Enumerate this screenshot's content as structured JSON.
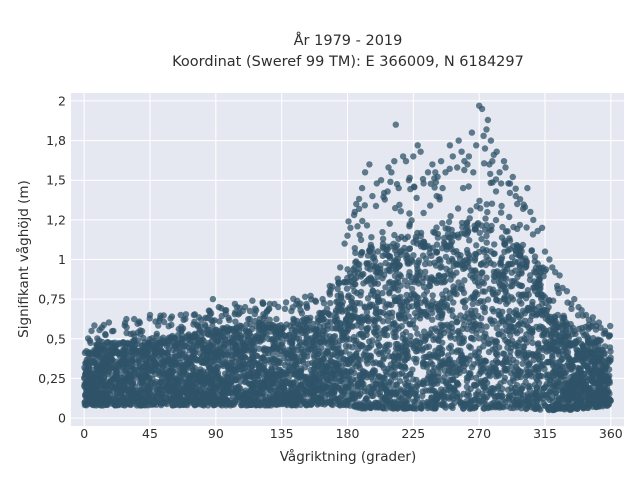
{
  "chart_data": {
    "type": "scatter",
    "title": [
      "År 1979 - 2019",
      "Koordinat (Sweref 99 TM): E 366009, N 6184297"
    ],
    "xlabel": "Vågriktning (grader)",
    "ylabel": "Signifikant våghöjd (m)",
    "xlim": [
      -9,
      369
    ],
    "ylim": [
      -0.05,
      2.05
    ],
    "xticks": [
      0,
      45,
      90,
      135,
      180,
      225,
      270,
      315,
      360
    ],
    "xtick_labels": [
      "0",
      "45",
      "90",
      "135",
      "180",
      "225",
      "270",
      "315",
      "360"
    ],
    "yticks": [
      0,
      0.25,
      0.5,
      0.75,
      1,
      1.25,
      1.5,
      1.75,
      2
    ],
    "ytick_labels": [
      "0",
      "0,25",
      "0,5",
      "0,75",
      "1",
      "1,2",
      "1,5",
      "1,8",
      "2"
    ],
    "grid": true,
    "marker_color": "#2f5368",
    "background_color": "#e5e8f0",
    "envelope": {
      "x": [
        0,
        10,
        20,
        30,
        40,
        50,
        60,
        70,
        80,
        90,
        100,
        110,
        120,
        130,
        140,
        150,
        160,
        170,
        175,
        180,
        185,
        190,
        200,
        210,
        220,
        230,
        240,
        250,
        260,
        270,
        280,
        290,
        300,
        310,
        320,
        330,
        340,
        350,
        360
      ],
      "y_min": [
        0.08,
        0.08,
        0.08,
        0.08,
        0.08,
        0.08,
        0.08,
        0.08,
        0.08,
        0.08,
        0.08,
        0.08,
        0.08,
        0.08,
        0.08,
        0.08,
        0.08,
        0.08,
        0.08,
        0.07,
        0.07,
        0.06,
        0.06,
        0.06,
        0.06,
        0.06,
        0.06,
        0.06,
        0.06,
        0.06,
        0.06,
        0.06,
        0.06,
        0.05,
        0.05,
        0.05,
        0.06,
        0.07,
        0.08
      ],
      "y_max": [
        0.42,
        0.48,
        0.48,
        0.5,
        0.5,
        0.52,
        0.52,
        0.53,
        0.55,
        0.56,
        0.58,
        0.58,
        0.6,
        0.6,
        0.62,
        0.64,
        0.66,
        0.72,
        0.8,
        0.88,
        0.98,
        1.05,
        1.1,
        1.12,
        1.15,
        1.18,
        1.2,
        1.22,
        1.25,
        1.28,
        1.25,
        1.18,
        1.05,
        0.9,
        0.75,
        0.62,
        0.55,
        0.5,
        0.45
      ]
    },
    "outliers": [
      [
        5,
        0.55
      ],
      [
        12,
        0.57
      ],
      [
        20,
        0.55
      ],
      [
        28,
        0.6
      ],
      [
        38,
        0.6
      ],
      [
        45,
        0.65
      ],
      [
        52,
        0.63
      ],
      [
        60,
        0.64
      ],
      [
        68,
        0.62
      ],
      [
        75,
        0.65
      ],
      [
        80,
        0.62
      ],
      [
        88,
        0.75
      ],
      [
        92,
        0.7
      ],
      [
        97,
        0.68
      ],
      [
        103,
        0.72
      ],
      [
        110,
        0.7
      ],
      [
        115,
        0.74
      ],
      [
        122,
        0.73
      ],
      [
        130,
        0.72
      ],
      [
        138,
        0.73
      ],
      [
        145,
        0.72
      ],
      [
        152,
        0.72
      ],
      [
        158,
        0.74
      ],
      [
        163,
        0.75
      ],
      [
        168,
        0.78
      ],
      [
        175,
        0.95
      ],
      [
        178,
        1.1
      ],
      [
        180,
        1.15
      ],
      [
        182,
        1.2
      ],
      [
        185,
        1.3
      ],
      [
        186,
        1.35
      ],
      [
        188,
        1.32
      ],
      [
        190,
        1.45
      ],
      [
        192,
        1.55
      ],
      [
        195,
        1.6
      ],
      [
        197,
        1.4
      ],
      [
        200,
        1.48
      ],
      [
        203,
        1.5
      ],
      [
        205,
        1.42
      ],
      [
        208,
        1.58
      ],
      [
        210,
        1.55
      ],
      [
        212,
        1.62
      ],
      [
        213,
        1.85
      ],
      [
        215,
        1.45
      ],
      [
        218,
        1.65
      ],
      [
        220,
        1.62
      ],
      [
        222,
        1.5
      ],
      [
        225,
        1.65
      ],
      [
        228,
        1.72
      ],
      [
        230,
        1.68
      ],
      [
        232,
        1.48
      ],
      [
        235,
        1.55
      ],
      [
        238,
        1.6
      ],
      [
        240,
        1.55
      ],
      [
        241,
        1.4
      ],
      [
        244,
        1.62
      ],
      [
        245,
        1.45
      ],
      [
        247,
        1.55
      ],
      [
        250,
        1.72
      ],
      [
        252,
        1.65
      ],
      [
        255,
        1.58
      ],
      [
        256,
        1.75
      ],
      [
        258,
        1.68
      ],
      [
        259,
        1.45
      ],
      [
        262,
        1.6
      ],
      [
        263,
        1.65
      ],
      [
        265,
        1.8
      ],
      [
        266,
        1.55
      ],
      [
        268,
        1.72
      ],
      [
        270,
        1.97
      ],
      [
        272,
        1.95
      ],
      [
        273,
        1.78
      ],
      [
        274,
        1.7
      ],
      [
        275,
        1.82
      ],
      [
        276,
        1.88
      ],
      [
        277,
        1.6
      ],
      [
        278,
        1.75
      ],
      [
        279,
        1.62
      ],
      [
        280,
        1.66
      ],
      [
        282,
        1.68
      ],
      [
        284,
        1.55
      ],
      [
        285,
        1.48
      ],
      [
        287,
        1.62
      ],
      [
        288,
        1.58
      ],
      [
        290,
        1.48
      ],
      [
        291,
        1.42
      ],
      [
        293,
        1.52
      ],
      [
        295,
        1.4
      ],
      [
        296,
        1.35
      ],
      [
        298,
        1.38
      ],
      [
        300,
        1.32
      ],
      [
        303,
        1.45
      ],
      [
        305,
        1.3
      ],
      [
        307,
        1.25
      ],
      [
        310,
        1.18
      ],
      [
        313,
        1.2
      ],
      [
        315,
        1.05
      ],
      [
        318,
        1.0
      ],
      [
        320,
        0.95
      ],
      [
        322,
        0.92
      ],
      [
        325,
        0.9
      ],
      [
        327,
        0.82
      ],
      [
        330,
        0.8
      ],
      [
        333,
        0.72
      ],
      [
        335,
        0.75
      ],
      [
        338,
        0.7
      ],
      [
        340,
        0.68
      ],
      [
        343,
        0.65
      ],
      [
        345,
        0.62
      ],
      [
        348,
        0.6
      ],
      [
        350,
        0.58
      ],
      [
        353,
        0.57
      ],
      [
        356,
        0.55
      ],
      [
        359,
        0.52
      ]
    ]
  }
}
